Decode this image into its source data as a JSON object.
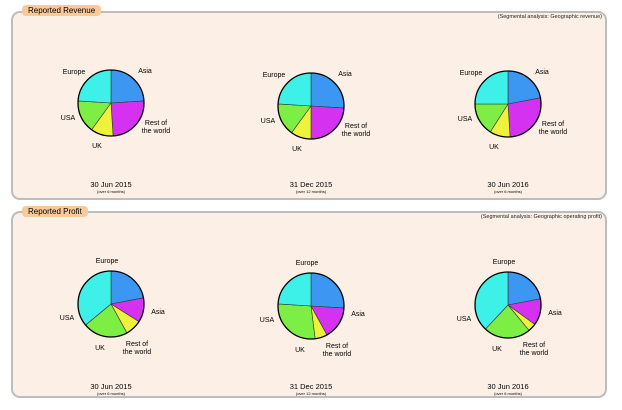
{
  "panels": [
    {
      "tab": "Reported Revenue",
      "note": "(Segmental analysis: Geographic revenue)"
    },
    {
      "tab": "Reported Profit",
      "note": "(Segmental analysis: Geographic operating profit)"
    }
  ],
  "colors": {
    "Asia": "#3c97f2",
    "Rest of the world": "#d431f0",
    "UK": "#eef23a",
    "USA": "#7cee44",
    "Europe": "#3df0e8"
  },
  "chart_data": [
    {
      "type": "pie",
      "panel": 0,
      "date": "30 Jun 2015",
      "period": "(over 6 months)",
      "labels": [
        "Asia",
        "Rest of the world",
        "UK",
        "USA",
        "Europe"
      ],
      "values": [
        24,
        25,
        11,
        16,
        24
      ]
    },
    {
      "type": "pie",
      "panel": 0,
      "date": "31 Dec 2015",
      "period": "(over 12 months)",
      "labels": [
        "Asia",
        "Rest of the world",
        "UK",
        "USA",
        "Europe"
      ],
      "values": [
        26,
        24,
        10,
        16,
        24
      ]
    },
    {
      "type": "pie",
      "panel": 0,
      "date": "30 Jun 2016",
      "period": "(over 6 months)",
      "labels": [
        "Asia",
        "Rest of the world",
        "UK",
        "USA",
        "Europe"
      ],
      "values": [
        22,
        27,
        10,
        16,
        25
      ]
    },
    {
      "type": "pie",
      "panel": 1,
      "date": "30 Jun 2015",
      "period": "(over 6 months)",
      "labels": [
        "Asia",
        "Rest of the world",
        "UK",
        "USA",
        "Europe"
      ],
      "values": [
        22,
        12,
        8,
        22,
        36
      ]
    },
    {
      "type": "pie",
      "panel": 1,
      "date": "31 Dec 2015",
      "period": "(over 12 months)",
      "labels": [
        "Asia",
        "Rest of the world",
        "UK",
        "USA",
        "Europe"
      ],
      "values": [
        26,
        16,
        6,
        28,
        24
      ]
    },
    {
      "type": "pie",
      "panel": 1,
      "date": "30 Jun 2016",
      "period": "(over 6 months)",
      "labels": [
        "Asia",
        "Rest of the world",
        "UK",
        "USA",
        "Europe"
      ],
      "values": [
        22,
        13,
        4,
        23,
        38
      ]
    }
  ],
  "pie_labels": {
    "Asia": "Asia",
    "Rest of the world": [
      "Rest of",
      "the world"
    ],
    "UK": "UK",
    "USA": "USA",
    "Europe": "Europe"
  }
}
